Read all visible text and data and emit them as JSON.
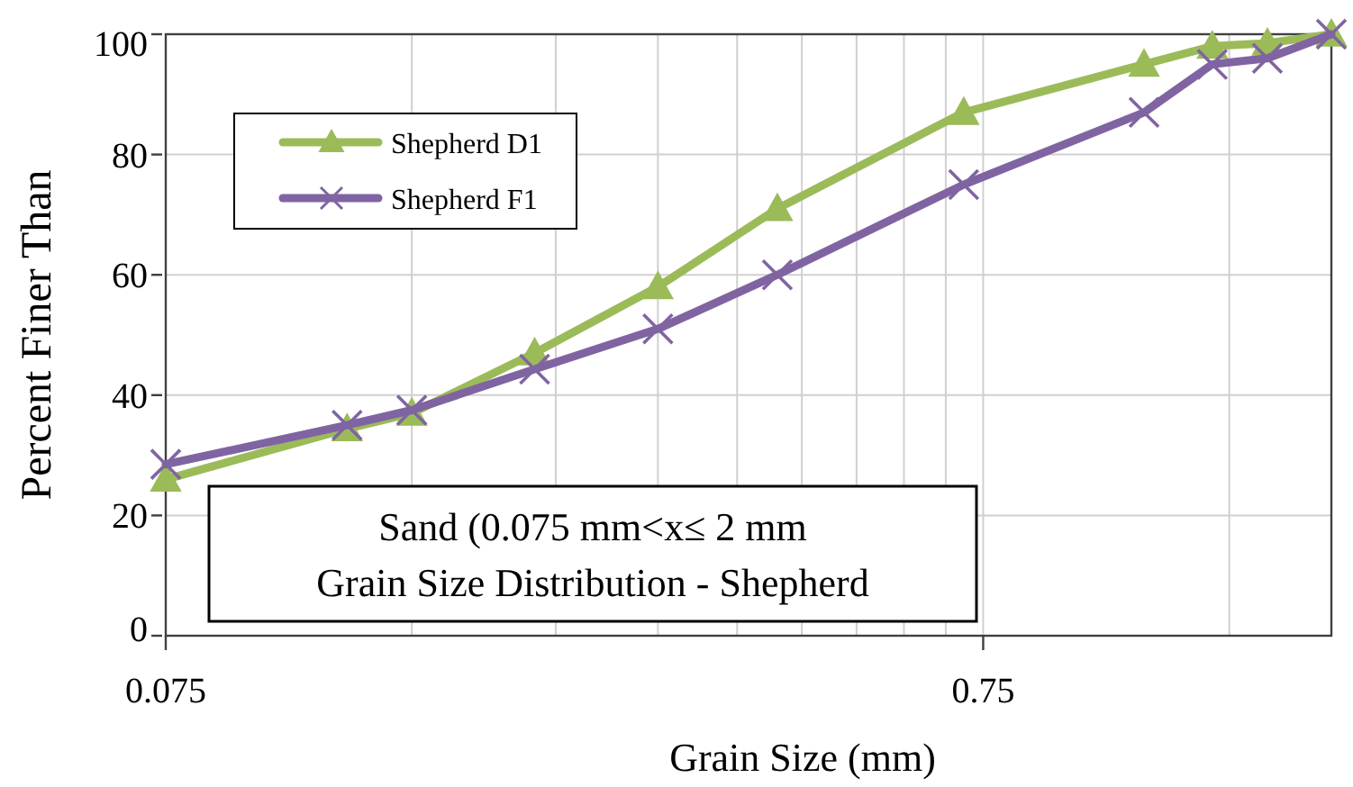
{
  "chart_data": {
    "type": "line",
    "xlabel": "Grain Size (mm)",
    "ylabel": "Percent Finer Than",
    "log": "x",
    "xlim": [
      0.075,
      2
    ],
    "ylim": [
      0,
      100
    ],
    "xticks": [
      0.075,
      {
        "value": 0.15,
        "label": null
      },
      {
        "value": 0.225,
        "label": null
      },
      {
        "value": 0.3,
        "label": null
      },
      {
        "value": 0.375,
        "label": null
      },
      {
        "value": 0.45,
        "label": null
      },
      {
        "value": 0.525,
        "label": null
      },
      {
        "value": 0.6,
        "label": null
      },
      {
        "value": 0.675,
        "label": null
      },
      0.75,
      {
        "value": 1.5,
        "label": null
      }
    ],
    "yticks": [
      0,
      20,
      40,
      60,
      80,
      100
    ],
    "grid": true,
    "legend": "top left",
    "line_style": "solid",
    "annotations": [
      "Sand (0.075 mm<x≤ 2 mm",
      "Grain Size Distribution - Shepherd"
    ],
    "series": [
      {
        "name": "Shepherd D1",
        "color": "#9bbb59",
        "marker": "triangle",
        "x": [
          0.075,
          0.125,
          0.15,
          0.212,
          0.3,
          0.42,
          0.71,
          1.18,
          1.43,
          1.67,
          2
        ],
        "values": [
          26,
          34.4,
          37,
          47,
          58,
          71,
          87,
          95,
          98,
          98.5,
          100
        ]
      },
      {
        "name": "Shepherd F1",
        "color": "#8064a2",
        "marker": "cross",
        "x": [
          0.075,
          0.125,
          0.15,
          0.212,
          0.3,
          0.42,
          0.71,
          1.18,
          1.43,
          1.67,
          2
        ],
        "values": [
          28.5,
          35,
          37.5,
          44.3,
          51,
          60,
          75,
          87,
          95,
          96,
          100
        ]
      }
    ]
  }
}
